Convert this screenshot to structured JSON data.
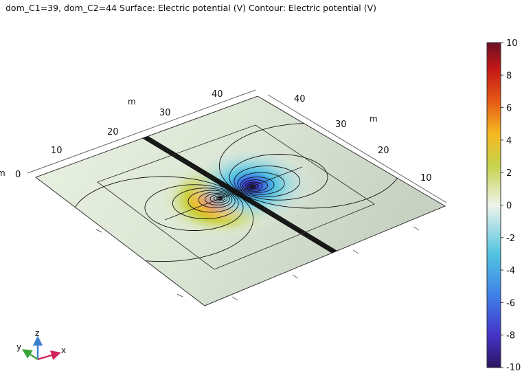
{
  "title": "dom_C1=39, dom_C2=44  Surface: Electric potential (V)  Contour: Electric potential (V)",
  "axes": {
    "left": {
      "unit": "m",
      "ticks": [
        "0",
        "10",
        "20",
        "30",
        "40"
      ]
    },
    "right": {
      "unit": "m",
      "ticks": [
        "10",
        "20",
        "30",
        "40"
      ]
    }
  },
  "colorbar": {
    "min": -10,
    "max": 10,
    "ticks": [
      "10",
      "8",
      "6",
      "4",
      "2",
      "0",
      "-2",
      "-4",
      "-6",
      "-8",
      "-10"
    ],
    "colormap": [
      "#2c1560",
      "#4433c8",
      "#3f7fe8",
      "#52c4e0",
      "#eef3ea",
      "#c5d24d",
      "#f5b820",
      "#e55a16",
      "#c41616",
      "#6c1026"
    ]
  },
  "triad": {
    "x": "x",
    "y": "y",
    "z": "z",
    "x_color": "#d0245a",
    "y_color": "#3aa43a",
    "z_color": "#3b7fd0"
  },
  "stray_label": "m"
}
